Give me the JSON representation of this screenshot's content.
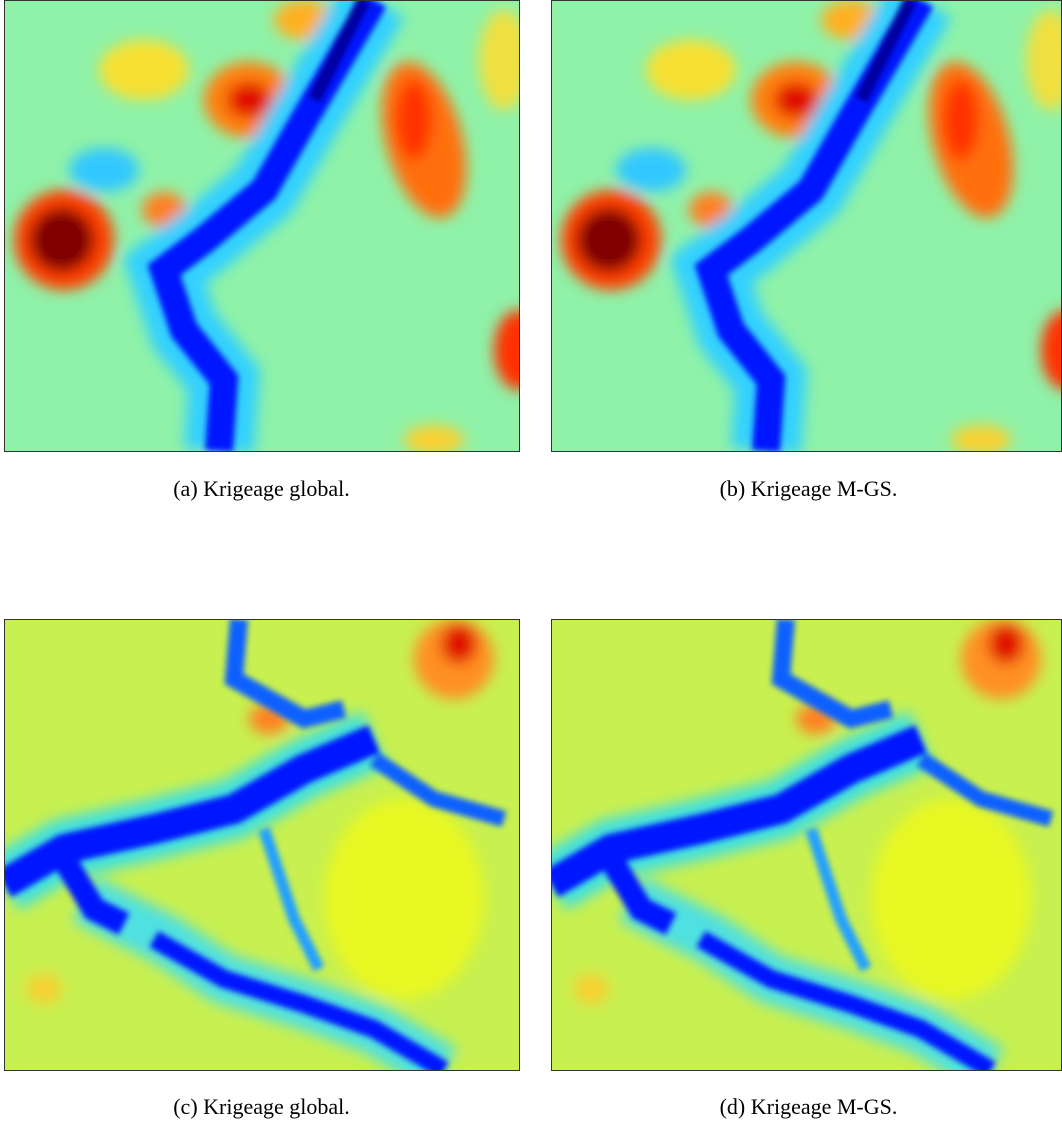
{
  "figure": {
    "panels": [
      {
        "caption": "(a) Krigeage global."
      },
      {
        "caption": "(b) Krigeage M-GS."
      },
      {
        "caption": "(c) Krigeage global."
      },
      {
        "caption": "(d) Krigeage M-GS."
      }
    ]
  }
}
